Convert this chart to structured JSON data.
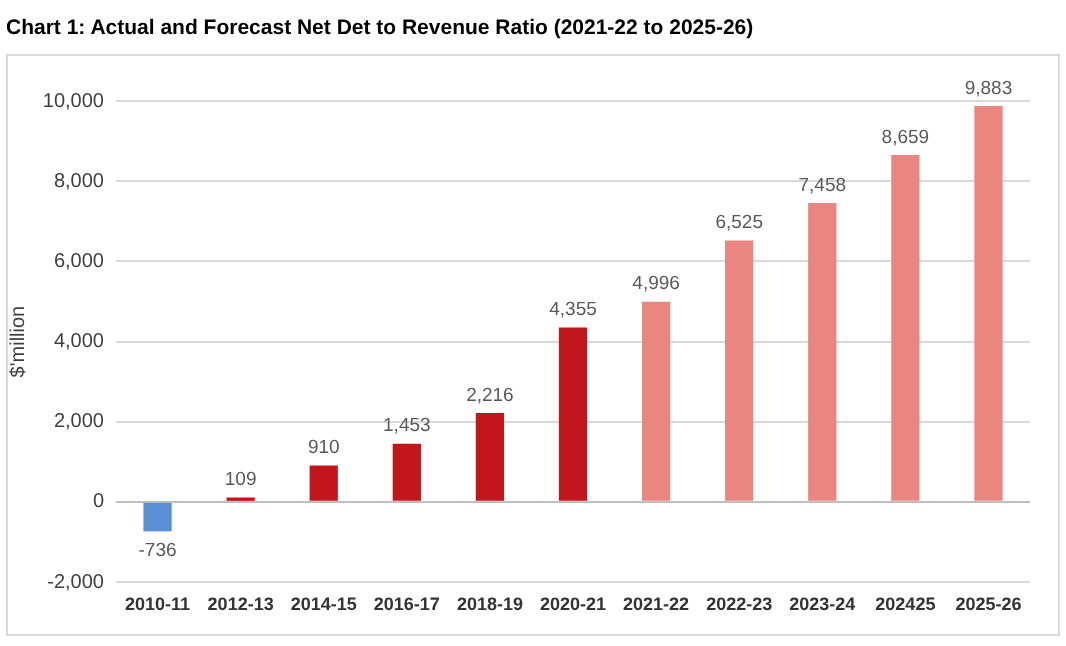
{
  "chart_data": {
    "type": "bar",
    "title": "Chart 1: Actual and Forecast Net Det to Revenue Ratio (2021-22 to 2025-26)",
    "ylabel": "$'million",
    "categories": [
      "2010-11",
      "2012-13",
      "2014-15",
      "2016-17",
      "2018-19",
      "2020-21",
      "2021-22",
      "2022-23",
      "2023-24",
      "202425",
      "2025-26"
    ],
    "values": [
      -736,
      109,
      910,
      1453,
      2216,
      4355,
      4996,
      6525,
      7458,
      8659,
      9883
    ],
    "colors": [
      "#5b8fd3",
      "#c0161c",
      "#c0161c",
      "#c0161c",
      "#c0161c",
      "#c0161c",
      "#e8867f",
      "#e8867f",
      "#e8867f",
      "#e8867f",
      "#e8867f"
    ],
    "value_labels": [
      "-736",
      "109",
      "910",
      "1,453",
      "2,216",
      "4,355",
      "4,996",
      "6,525",
      "7,458",
      "8,659",
      "9,883"
    ],
    "ylim": [
      -2000,
      10000
    ],
    "yticks": [
      {
        "value": -2000,
        "label": "-2,000"
      },
      0,
      {
        "value": 2000,
        "label": "2,000"
      },
      {
        "value": 4000,
        "label": "4,000"
      },
      {
        "value": 6000,
        "label": "6,000"
      },
      {
        "value": 8000,
        "label": "8,000"
      },
      {
        "value": 10000,
        "label": "10,000"
      }
    ],
    "grid": "y"
  }
}
